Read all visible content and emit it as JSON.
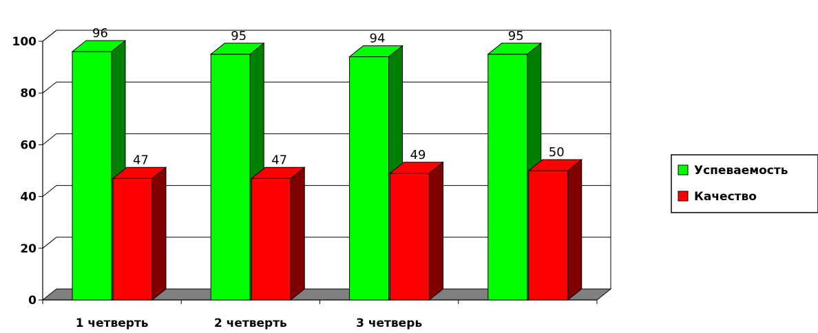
{
  "chart_data": {
    "type": "bar",
    "title": "",
    "xlabel": "",
    "ylabel": "",
    "ylim": [
      0,
      100
    ],
    "yticks": [
      0,
      20,
      40,
      60,
      80,
      100
    ],
    "grid": true,
    "style": "3d-clustered-column",
    "categories": [
      "1 четверть",
      "2 четверть",
      "3 четверь",
      ""
    ],
    "series": [
      {
        "name": "Успеваемость",
        "values": [
          96,
          95,
          94,
          95
        ],
        "color": "#00ff00",
        "side_color": "#008000"
      },
      {
        "name": "Качество",
        "values": [
          47,
          47,
          49,
          50
        ],
        "color": "#ff0000",
        "side_color": "#800000"
      }
    ],
    "data_labels": true,
    "legend_position": "right",
    "colors": {
      "floor": "#808080",
      "gridline": "#000000",
      "label": "#000000"
    }
  }
}
